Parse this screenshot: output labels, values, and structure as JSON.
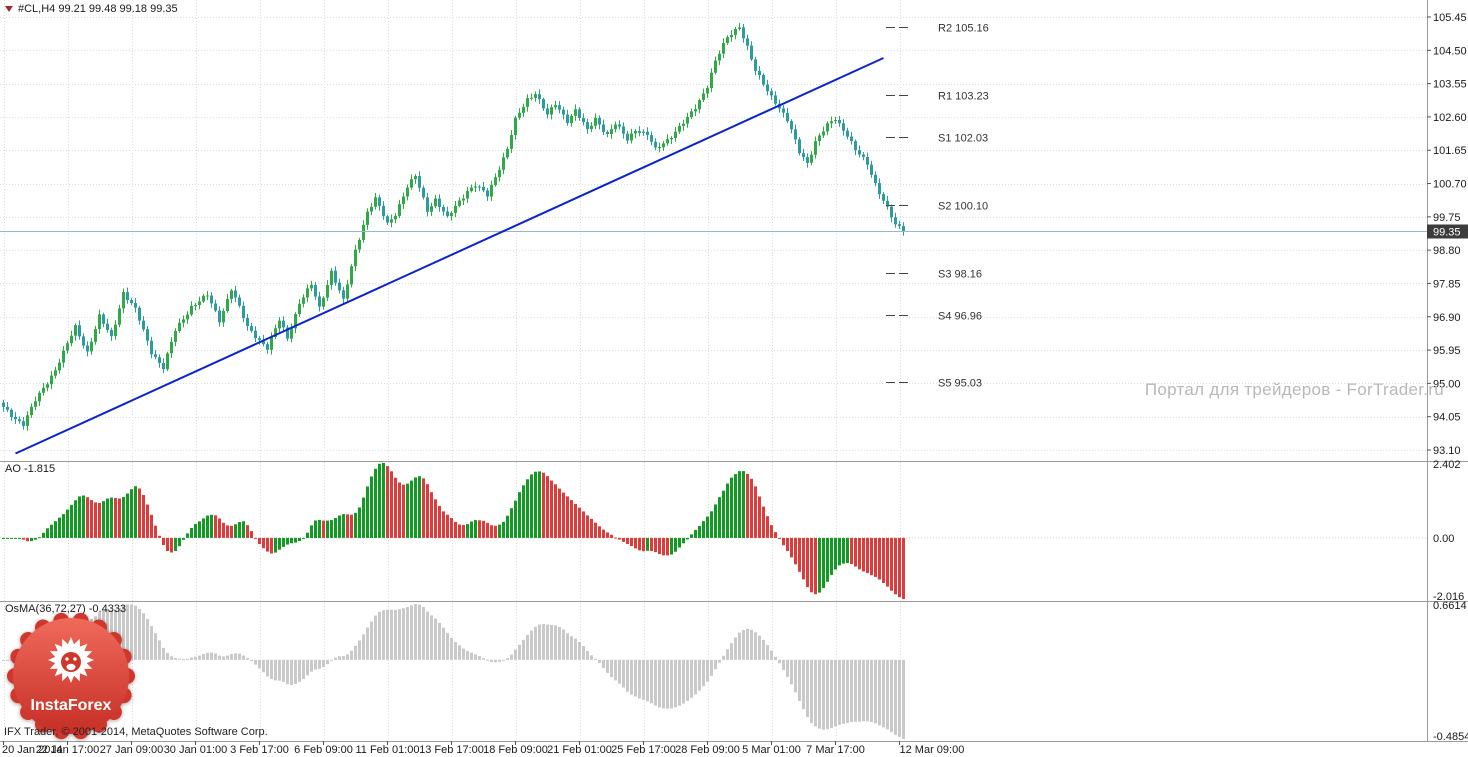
{
  "header": {
    "symbol_line": "#CL,H4 99.21 99.48 99.18 99.35"
  },
  "watermark": {
    "text": "Портал для трейдеров - ForTrader.ru",
    "color": "#b8b8b8"
  },
  "logo": {
    "text": "InstaForex",
    "brand_color": "#cf372d"
  },
  "footer": {
    "copyright": "IFX Trader, © 2001-2014, MetaQuotes Software Corp."
  },
  "chart_data": [
    {
      "type": "candlestick",
      "symbol": "#CL",
      "timeframe": "H4",
      "last_quote": {
        "open": 99.21,
        "high": 99.48,
        "low": 99.18,
        "close": 99.35
      },
      "ylim": [
        93.1,
        105.45
      ],
      "y_ticks": [
        "105.45",
        "104.50",
        "103.55",
        "102.60",
        "101.65",
        "100.70",
        "99.75",
        "98.80",
        "97.85",
        "96.90",
        "95.95",
        "95.00",
        "94.05",
        "93.10"
      ],
      "x_ticks": [
        {
          "bar": 0,
          "label": "20 Jan 2014"
        },
        {
          "bar": 16,
          "label": "22 Jan 17:00"
        },
        {
          "bar": 32,
          "label": "27 Jan 09:00"
        },
        {
          "bar": 48,
          "label": "30 Jan 01:00"
        },
        {
          "bar": 64,
          "label": "3 Feb 17:00"
        },
        {
          "bar": 80,
          "label": "6 Feb 09:00"
        },
        {
          "bar": 96,
          "label": "11 Feb 01:00"
        },
        {
          "bar": 112,
          "label": "13 Feb 17:00"
        },
        {
          "bar": 128,
          "label": "18 Feb 09:00"
        },
        {
          "bar": 144,
          "label": "21 Feb 01:00"
        },
        {
          "bar": 160,
          "label": "25 Feb 17:00"
        },
        {
          "bar": 176,
          "label": "28 Feb 09:00"
        },
        {
          "bar": 192,
          "label": "5 Mar 01:00"
        },
        {
          "bar": 208,
          "label": "7 Mar 17:00"
        },
        {
          "bar": 224,
          "label": "12 Mar 09:00"
        }
      ],
      "bars_total": 226,
      "price_path": [
        [
          0,
          94.3
        ],
        [
          3,
          94.0
        ],
        [
          5,
          93.85
        ],
        [
          8,
          94.5
        ],
        [
          13,
          95.4
        ],
        [
          18,
          96.6
        ],
        [
          21,
          95.9
        ],
        [
          24,
          96.9
        ],
        [
          27,
          96.3
        ],
        [
          30,
          97.6
        ],
        [
          33,
          97.1
        ],
        [
          37,
          95.9
        ],
        [
          40,
          95.45
        ],
        [
          43,
          96.5
        ],
        [
          47,
          97.2
        ],
        [
          51,
          97.5
        ],
        [
          54,
          96.8
        ],
        [
          57,
          97.7
        ],
        [
          61,
          96.6
        ],
        [
          64,
          96.25
        ],
        [
          66,
          96.0
        ],
        [
          69,
          96.8
        ],
        [
          71,
          96.3
        ],
        [
          74,
          97.3
        ],
        [
          77,
          97.8
        ],
        [
          79,
          97.15
        ],
        [
          82,
          98.2
        ],
        [
          85,
          97.35
        ],
        [
          88,
          98.8
        ],
        [
          91,
          99.9
        ],
        [
          93,
          100.25
        ],
        [
          96,
          99.55
        ],
        [
          98,
          99.85
        ],
        [
          101,
          100.6
        ],
        [
          103,
          100.9
        ],
        [
          106,
          99.95
        ],
        [
          108,
          100.25
        ],
        [
          111,
          99.7
        ],
        [
          113,
          100.05
        ],
        [
          116,
          100.5
        ],
        [
          118,
          100.65
        ],
        [
          121,
          100.35
        ],
        [
          123,
          100.9
        ],
        [
          126,
          101.7
        ],
        [
          128,
          102.5
        ],
        [
          131,
          103.1
        ],
        [
          133,
          103.3
        ],
        [
          136,
          102.65
        ],
        [
          138,
          102.95
        ],
        [
          141,
          102.5
        ],
        [
          143,
          102.8
        ],
        [
          146,
          102.2
        ],
        [
          148,
          102.55
        ],
        [
          151,
          102.1
        ],
        [
          153,
          102.4
        ],
        [
          156,
          101.95
        ],
        [
          158,
          102.25
        ],
        [
          161,
          102.1
        ],
        [
          163,
          101.65
        ],
        [
          166,
          101.95
        ],
        [
          168,
          102.2
        ],
        [
          171,
          102.55
        ],
        [
          173,
          102.85
        ],
        [
          176,
          103.5
        ],
        [
          178,
          104.2
        ],
        [
          181,
          104.85
        ],
        [
          184,
          105.2
        ],
        [
          186,
          104.6
        ],
        [
          188,
          103.9
        ],
        [
          191,
          103.35
        ],
        [
          193,
          103.05
        ],
        [
          196,
          102.5
        ],
        [
          199,
          101.6
        ],
        [
          201,
          101.3
        ],
        [
          203,
          101.9
        ],
        [
          206,
          102.35
        ],
        [
          208,
          102.55
        ],
        [
          211,
          102.1
        ],
        [
          213,
          101.65
        ],
        [
          216,
          101.25
        ],
        [
          218,
          100.7
        ],
        [
          221,
          100.0
        ],
        [
          223,
          99.5
        ],
        [
          225,
          99.35
        ]
      ],
      "up_color": "#31a948",
      "down_color": "#2e9c9e",
      "trendline": {
        "from_bar": 3,
        "from_price": 93.0,
        "to_bar": 220,
        "to_price": 104.28,
        "color": "#0b24cc"
      },
      "current_price": 99.35,
      "current_price_label": "99.35",
      "price_line_color": "#8fbbd1",
      "price_badge_bg": "#3c3c3c",
      "pivot_levels": [
        {
          "label": "R2 105.16",
          "price": 105.16
        },
        {
          "label": "R1 103.23",
          "price": 103.23
        },
        {
          "label": "S1 102.03",
          "price": 102.03
        },
        {
          "label": "S2 100.10",
          "price": 100.1
        },
        {
          "label": "S3 98.16",
          "price": 98.16
        },
        {
          "label": "S4 96.96",
          "price": 96.96
        },
        {
          "label": "S5 95.03",
          "price": 95.03
        }
      ]
    },
    {
      "type": "histogram",
      "indicator": "Awesome Oscillator",
      "label": "AO -1.815",
      "last_value": -1.815,
      "y_ticks": [
        "2.402",
        "0.00",
        "-2.016"
      ],
      "derivation": {
        "source": "median_price",
        "fast_sma": 5,
        "slow_sma": 34
      },
      "up_color": "#119b22",
      "down_color": "#e13a3a"
    },
    {
      "type": "histogram",
      "indicator": "OsMA",
      "label": "OsMA(36,72,27) -0.4333",
      "last_value": -0.4333,
      "y_ticks": [
        "0.6614",
        "-0.4854"
      ],
      "derivation": {
        "fast_ema": 36,
        "slow_ema": 72,
        "signal_sma": 27
      },
      "color": "#c9c9c9"
    }
  ]
}
